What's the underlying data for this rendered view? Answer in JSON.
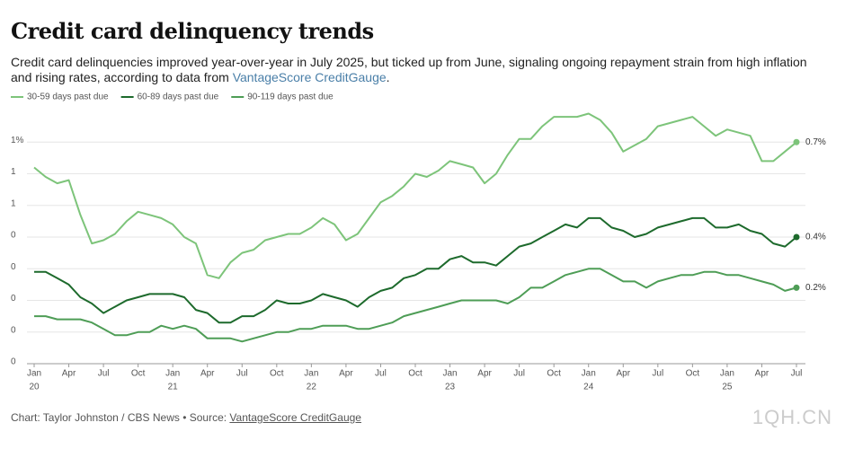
{
  "chart_data": {
    "type": "line",
    "title": "Credit card delinquency trends",
    "subtitle": "Credit card delinquencies improved year-over-year in July 2025, but ticked up from June, signaling ongoing repayment strain from high inflation and rising rates, according to data from ",
    "subtitle_link": "VantageScore CreditGauge",
    "subtitle_end": ".",
    "footer": "Chart: Taylor Johnston / CBS News • Source: ",
    "footer_link": "VantageScore CreditGauge",
    "watermark": "1QH.CN",
    "x": [
      "2020-01",
      "2020-02",
      "2020-03",
      "2020-04",
      "2020-05",
      "2020-06",
      "2020-07",
      "2020-08",
      "2020-09",
      "2020-10",
      "2020-11",
      "2020-12",
      "2021-01",
      "2021-02",
      "2021-03",
      "2021-04",
      "2021-05",
      "2021-06",
      "2021-07",
      "2021-08",
      "2021-09",
      "2021-10",
      "2021-11",
      "2021-12",
      "2022-01",
      "2022-02",
      "2022-03",
      "2022-04",
      "2022-05",
      "2022-06",
      "2022-07",
      "2022-08",
      "2022-09",
      "2022-10",
      "2022-11",
      "2022-12",
      "2023-01",
      "2023-02",
      "2023-03",
      "2023-04",
      "2023-05",
      "2023-06",
      "2023-07",
      "2023-08",
      "2023-09",
      "2023-10",
      "2023-11",
      "2023-12",
      "2024-01",
      "2024-02",
      "2024-03",
      "2024-04",
      "2024-05",
      "2024-06",
      "2024-07",
      "2024-08",
      "2024-09",
      "2024-10",
      "2024-11",
      "2024-12",
      "2025-01",
      "2025-02",
      "2025-03",
      "2025-04",
      "2025-05",
      "2025-06",
      "2025-07"
    ],
    "xticks": [
      {
        "value": "2020-01",
        "label": [
          "Jan",
          "20"
        ]
      },
      {
        "value": "2020-04",
        "label": [
          "Apr"
        ]
      },
      {
        "value": "2020-07",
        "label": [
          "Jul"
        ]
      },
      {
        "value": "2020-10",
        "label": [
          "Oct"
        ]
      },
      {
        "value": "2021-01",
        "label": [
          "Jan",
          "21"
        ]
      },
      {
        "value": "2021-04",
        "label": [
          "Apr"
        ]
      },
      {
        "value": "2021-07",
        "label": [
          "Jul"
        ]
      },
      {
        "value": "2021-10",
        "label": [
          "Oct"
        ]
      },
      {
        "value": "2022-01",
        "label": [
          "Jan",
          "22"
        ]
      },
      {
        "value": "2022-04",
        "label": [
          "Apr"
        ]
      },
      {
        "value": "2022-07",
        "label": [
          "Jul"
        ]
      },
      {
        "value": "2022-10",
        "label": [
          "Oct"
        ]
      },
      {
        "value": "2023-01",
        "label": [
          "Jan",
          "23"
        ]
      },
      {
        "value": "2023-04",
        "label": [
          "Apr"
        ]
      },
      {
        "value": "2023-07",
        "label": [
          "Jul"
        ]
      },
      {
        "value": "2023-10",
        "label": [
          "Oct"
        ]
      },
      {
        "value": "2024-01",
        "label": [
          "Jan",
          "24"
        ]
      },
      {
        "value": "2024-04",
        "label": [
          "Apr"
        ]
      },
      {
        "value": "2024-07",
        "label": [
          "Jul"
        ]
      },
      {
        "value": "2024-10",
        "label": [
          "Oct"
        ]
      },
      {
        "value": "2025-01",
        "label": [
          "Jan",
          "25"
        ]
      },
      {
        "value": "2025-04",
        "label": [
          "Apr"
        ]
      },
      {
        "value": "2025-07",
        "label": [
          "Jul"
        ]
      }
    ],
    "ylim": [
      0,
      0.8
    ],
    "yticks": [
      {
        "value": 0,
        "label": "0"
      },
      {
        "value": 0.1,
        "label": "0"
      },
      {
        "value": 0.2,
        "label": "0"
      },
      {
        "value": 0.3,
        "label": "0"
      },
      {
        "value": 0.4,
        "label": "0"
      },
      {
        "value": 0.5,
        "label": "1"
      },
      {
        "value": 0.6,
        "label": "1"
      },
      {
        "value": 0.7,
        "label": "1%"
      }
    ],
    "grid": true,
    "legend": "top-left",
    "series": [
      {
        "name": "30-59 days past due",
        "color": "#7dc47a",
        "values": [
          0.62,
          0.59,
          0.57,
          0.58,
          0.47,
          0.38,
          0.39,
          0.41,
          0.45,
          0.48,
          0.47,
          0.46,
          0.44,
          0.4,
          0.38,
          0.28,
          0.27,
          0.32,
          0.35,
          0.36,
          0.39,
          0.4,
          0.41,
          0.41,
          0.43,
          0.46,
          0.44,
          0.39,
          0.41,
          0.46,
          0.51,
          0.53,
          0.56,
          0.6,
          0.59,
          0.61,
          0.64,
          0.63,
          0.62,
          0.57,
          0.6,
          0.66,
          0.71,
          0.71,
          0.75,
          0.78,
          0.78,
          0.78,
          0.79,
          0.77,
          0.73,
          0.67,
          0.69,
          0.71,
          0.75,
          0.76,
          0.77,
          0.78,
          0.75,
          0.72,
          0.74,
          0.73,
          0.72,
          0.64,
          0.64,
          0.67,
          0.7
        ],
        "value_labels": [
          null,
          null,
          null,
          null,
          null,
          null,
          null,
          null,
          null,
          null,
          null,
          null,
          null,
          null,
          null,
          null,
          null,
          null,
          null,
          null,
          null,
          null,
          null,
          null,
          null,
          null,
          null,
          null,
          null,
          null,
          null,
          null,
          null,
          null,
          null,
          null,
          null,
          null,
          null,
          null,
          null,
          null,
          null,
          null,
          null,
          null,
          null,
          null,
          null,
          null,
          null,
          null,
          null,
          null,
          null,
          null,
          null,
          null,
          null,
          null,
          null,
          null,
          null,
          null,
          null,
          null,
          "0.7%"
        ]
      },
      {
        "name": "60-89 days past due",
        "color": "#1d6a2c",
        "values": [
          0.29,
          0.29,
          0.27,
          0.25,
          0.21,
          0.19,
          0.16,
          0.18,
          0.2,
          0.21,
          0.22,
          0.22,
          0.22,
          0.21,
          0.17,
          0.16,
          0.13,
          0.13,
          0.15,
          0.15,
          0.17,
          0.2,
          0.19,
          0.19,
          0.2,
          0.22,
          0.21,
          0.2,
          0.18,
          0.21,
          0.23,
          0.24,
          0.27,
          0.28,
          0.3,
          0.3,
          0.33,
          0.34,
          0.32,
          0.32,
          0.31,
          0.34,
          0.37,
          0.38,
          0.4,
          0.42,
          0.44,
          0.43,
          0.46,
          0.46,
          0.43,
          0.42,
          0.4,
          0.41,
          0.43,
          0.44,
          0.45,
          0.46,
          0.46,
          0.43,
          0.43,
          0.44,
          0.42,
          0.41,
          0.38,
          0.37,
          0.4
        ],
        "value_labels": [
          null,
          null,
          null,
          null,
          null,
          null,
          null,
          null,
          null,
          null,
          null,
          null,
          null,
          null,
          null,
          null,
          null,
          null,
          null,
          null,
          null,
          null,
          null,
          null,
          null,
          null,
          null,
          null,
          null,
          null,
          null,
          null,
          null,
          null,
          null,
          null,
          null,
          null,
          null,
          null,
          null,
          null,
          null,
          null,
          null,
          null,
          null,
          null,
          null,
          null,
          null,
          null,
          null,
          null,
          null,
          null,
          null,
          null,
          null,
          null,
          null,
          null,
          null,
          null,
          null,
          null,
          "0.4%"
        ]
      },
      {
        "name": "90-119 days past due",
        "color": "#4e9d56",
        "values": [
          0.15,
          0.15,
          0.14,
          0.14,
          0.14,
          0.13,
          0.11,
          0.09,
          0.09,
          0.1,
          0.1,
          0.12,
          0.11,
          0.12,
          0.11,
          0.08,
          0.08,
          0.08,
          0.07,
          0.08,
          0.09,
          0.1,
          0.1,
          0.11,
          0.11,
          0.12,
          0.12,
          0.12,
          0.11,
          0.11,
          0.12,
          0.13,
          0.15,
          0.16,
          0.17,
          0.18,
          0.19,
          0.2,
          0.2,
          0.2,
          0.2,
          0.19,
          0.21,
          0.24,
          0.24,
          0.26,
          0.28,
          0.29,
          0.3,
          0.3,
          0.28,
          0.26,
          0.26,
          0.24,
          0.26,
          0.27,
          0.28,
          0.28,
          0.29,
          0.29,
          0.28,
          0.28,
          0.27,
          0.26,
          0.25,
          0.23,
          0.24
        ],
        "value_labels": [
          null,
          null,
          null,
          null,
          null,
          null,
          null,
          null,
          null,
          null,
          null,
          null,
          null,
          null,
          null,
          null,
          null,
          null,
          null,
          null,
          null,
          null,
          null,
          null,
          null,
          null,
          null,
          null,
          null,
          null,
          null,
          null,
          null,
          null,
          null,
          null,
          null,
          null,
          null,
          null,
          null,
          null,
          null,
          null,
          null,
          null,
          null,
          null,
          null,
          null,
          null,
          null,
          null,
          null,
          null,
          null,
          null,
          null,
          null,
          null,
          null,
          null,
          null,
          null,
          null,
          null,
          "0.2%"
        ]
      }
    ]
  }
}
